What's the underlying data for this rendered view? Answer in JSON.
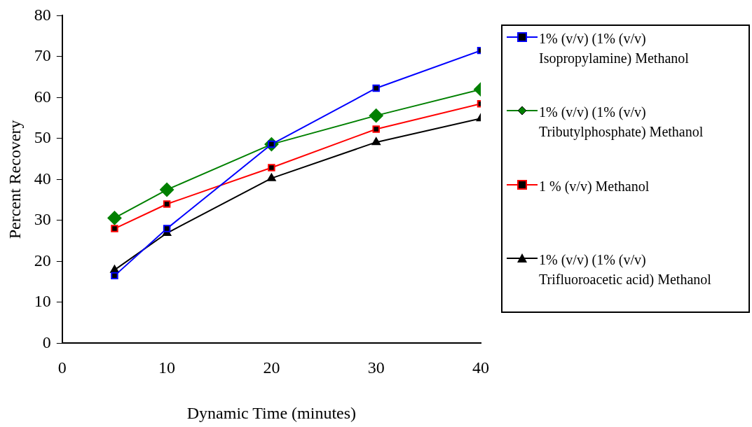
{
  "chart_data": {
    "type": "line",
    "xlabel": "Dynamic Time (minutes)",
    "ylabel": "Percent Recovery",
    "x": [
      5,
      10,
      20,
      30,
      40
    ],
    "xlim": [
      0,
      40
    ],
    "xticks": [
      0,
      10,
      20,
      30,
      40
    ],
    "ylim": [
      0,
      80
    ],
    "yticks": [
      0,
      10,
      20,
      30,
      40,
      50,
      60,
      70,
      80
    ],
    "grid": false,
    "legend": "right",
    "line_style": "solid",
    "series": [
      {
        "name": "1% (v/v) (1% (v/v) Isopropylamine) Methanol",
        "color": "#0000ff",
        "marker": "square",
        "values": [
          16.5,
          28,
          48.6,
          62.3,
          71.5
        ]
      },
      {
        "name": "1% (v/v) (1% (v/v) Tributylphosphate) Methanol",
        "color": "#008000",
        "marker": "diamond",
        "values": [
          30.6,
          37.5,
          48.6,
          55.6,
          62
        ]
      },
      {
        "name": "1 % (v/v) Methanol",
        "color": "#ff0000",
        "marker": "square",
        "values": [
          28,
          34,
          42.9,
          52.3,
          58.5
        ]
      },
      {
        "name": "1% (v/v) (1% (v/v) Trifluoroacetic acid) Methanol",
        "color": "#000000",
        "marker": "triangle",
        "values": [
          17.9,
          26.9,
          40.3,
          49.1,
          54.9
        ]
      }
    ]
  }
}
